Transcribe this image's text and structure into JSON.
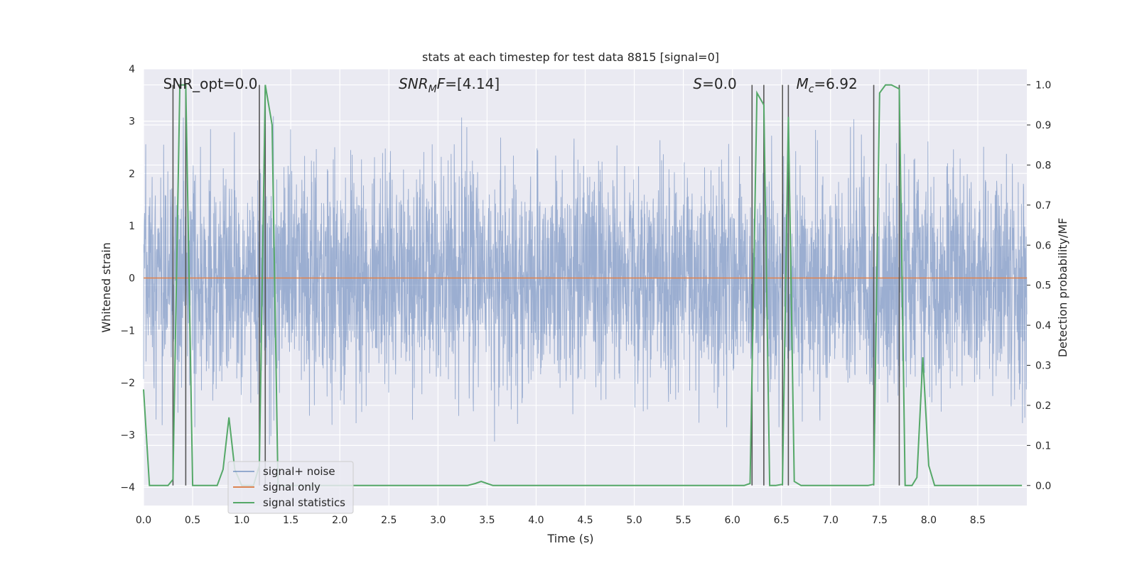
{
  "chart_data": {
    "type": "line",
    "title": "stats at each timestep for test data 8815 [signal=0]",
    "xlabel": "Time (s)",
    "ylabel": "Whitened strain",
    "y2label": "Detection probability/MF",
    "xlim": [
      0.0,
      9.0
    ],
    "ylim": [
      -4.35,
      4.0
    ],
    "y2lim": [
      -0.05,
      1.04
    ],
    "xticks": [
      "0.0",
      "0.5",
      "1.0",
      "1.5",
      "2.0",
      "2.5",
      "3.0",
      "3.5",
      "4.0",
      "4.5",
      "5.0",
      "5.5",
      "6.0",
      "6.5",
      "7.0",
      "7.5",
      "8.0",
      "8.5"
    ],
    "yticks": [
      "4",
      "3",
      "2",
      "1",
      "0",
      "−1",
      "−2",
      "−3",
      "−4"
    ],
    "y2ticks": [
      "1.0",
      "0.9",
      "0.8",
      "0.7",
      "0.6",
      "0.5",
      "0.4",
      "0.3",
      "0.2",
      "0.1",
      "0.0"
    ],
    "grid": true,
    "legend_position": "lower-left",
    "annotations": [
      {
        "text": "SNR_opt=0.0",
        "x": 0.2,
        "y": 3.7
      },
      {
        "text": "SNR_MF=[4.14]",
        "x": 2.6,
        "y": 3.7
      },
      {
        "text": "S=0.0",
        "x": 5.6,
        "y": 3.7
      },
      {
        "text": "M_c=6.92",
        "x": 6.65,
        "y": 3.7
      }
    ],
    "vertical_lines_x": [
      0.3,
      0.43,
      1.18,
      1.24,
      6.2,
      6.32,
      6.51,
      6.57,
      7.44,
      7.7
    ],
    "colors": {
      "noise": "#4c72b0",
      "signal": "#dd8452",
      "stats": "#55a868",
      "vlines": "#555555",
      "background": "#eaeaf2"
    },
    "series": [
      {
        "name": "signal+ noise",
        "noise_band": {
          "typical_amplitude": 1.7,
          "peak_amplitude": 3.4,
          "min": -3.6
        }
      },
      {
        "name": "signal only",
        "x": [
          0.0,
          9.0
        ],
        "y": [
          0.0,
          0.0
        ]
      },
      {
        "name": "signal statistics",
        "axis": "right",
        "x": [
          0.0,
          0.06,
          0.12,
          0.18,
          0.25,
          0.3,
          0.37,
          0.43,
          0.5,
          0.56,
          0.62,
          0.68,
          0.75,
          0.81,
          0.87,
          0.93,
          1.0,
          1.06,
          1.12,
          1.18,
          1.24,
          1.31,
          1.37,
          1.43,
          1.5,
          1.56,
          1.62,
          1.68,
          1.75,
          2.0,
          2.5,
          3.0,
          3.3,
          3.38,
          3.44,
          3.5,
          3.56,
          3.62,
          3.7,
          4.0,
          5.0,
          6.0,
          6.12,
          6.18,
          6.25,
          6.32,
          6.38,
          6.44,
          6.51,
          6.57,
          6.63,
          6.7,
          6.76,
          6.82,
          7.0,
          7.3,
          7.38,
          7.44,
          7.5,
          7.56,
          7.62,
          7.7,
          7.76,
          7.83,
          7.88,
          7.94,
          8.0,
          8.06,
          8.12,
          8.2,
          8.5,
          8.8,
          8.95
        ],
        "y": [
          0.24,
          0.0,
          0.0,
          0.0,
          0.0,
          0.015,
          1.0,
          1.0,
          0.0,
          0.0,
          0.0,
          0.0,
          0.0,
          0.04,
          0.17,
          0.04,
          0.0,
          0.0,
          0.0,
          0.05,
          1.0,
          0.9,
          0.0,
          0.0,
          0.0,
          0.0,
          0.0,
          0.0,
          0.0,
          0.0,
          0.0,
          0.0,
          0.0,
          0.005,
          0.01,
          0.005,
          0.0,
          0.0,
          0.0,
          0.0,
          0.0,
          0.0,
          0.0,
          0.005,
          0.98,
          0.95,
          0.0,
          0.0,
          0.003,
          0.92,
          0.01,
          0.0,
          0.0,
          0.0,
          0.0,
          0.0,
          0.0,
          0.003,
          0.98,
          1.0,
          1.0,
          0.99,
          0.0,
          0.0,
          0.02,
          0.32,
          0.05,
          0.0,
          0.0,
          0.0,
          0.0,
          0.0,
          0.0
        ]
      }
    ]
  }
}
